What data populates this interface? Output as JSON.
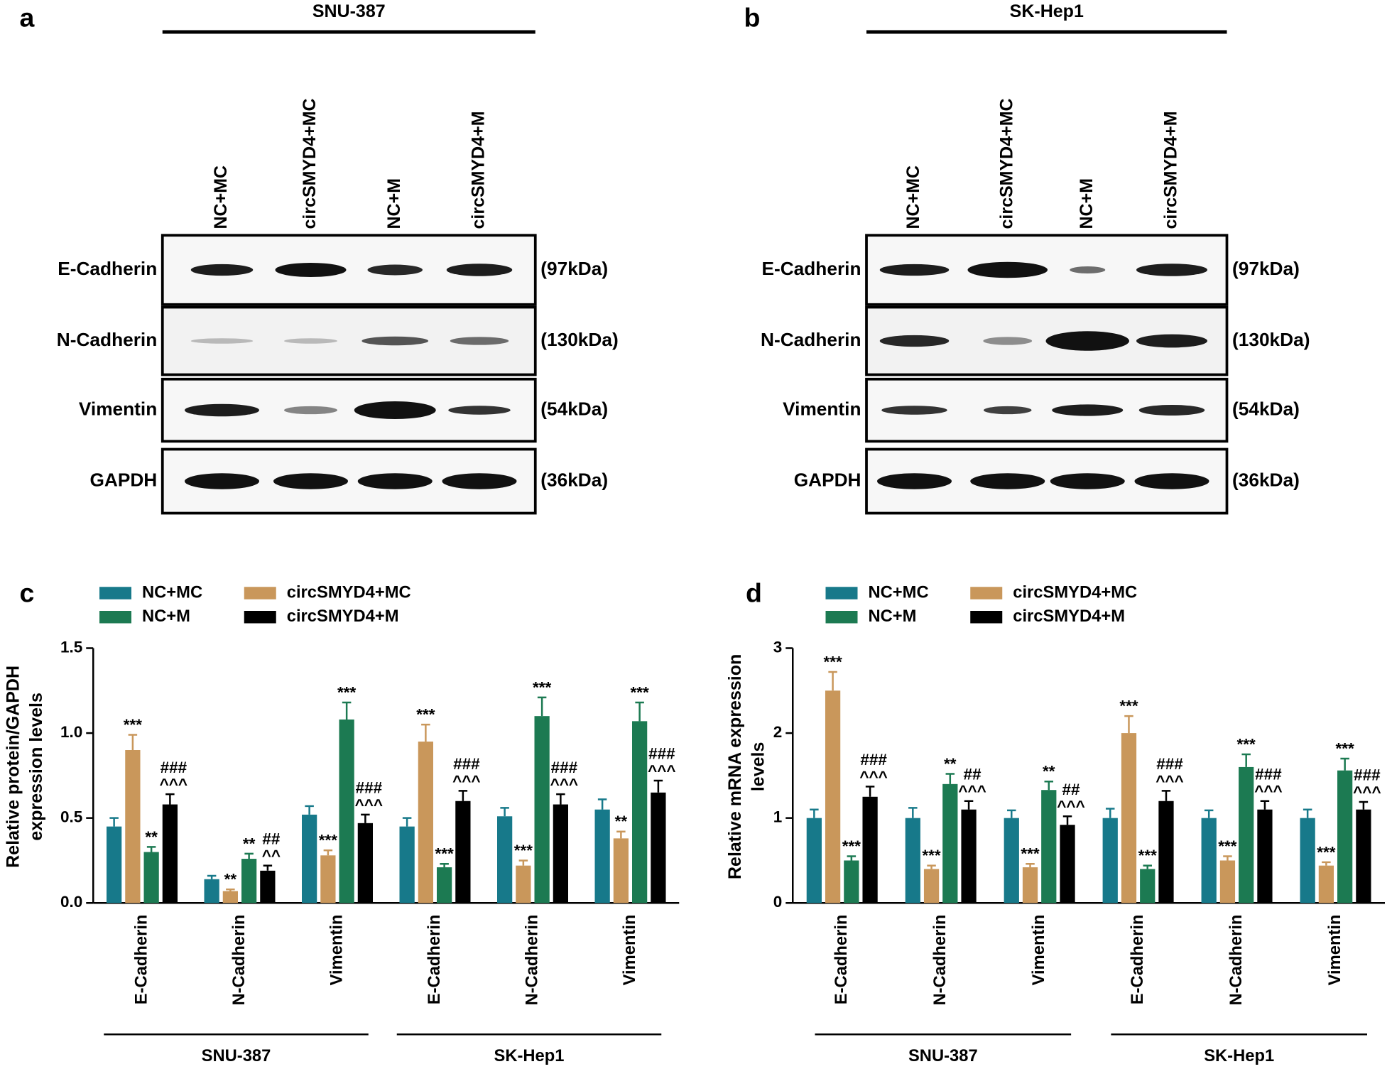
{
  "panels": [
    {
      "letter": "a",
      "cell_line": "SNU-387",
      "lanes": [
        "NC+MC",
        "circSMYD4+MC",
        "NC+M",
        "circSMYD4+M"
      ],
      "rows": [
        {
          "protein": "E-Cadherin",
          "size": "(97kDa)"
        },
        {
          "protein": "N-Cadherin",
          "size": "(130kDa)"
        },
        {
          "protein": "Vimentin",
          "size": "(54kDa)"
        },
        {
          "protein": "GAPDH",
          "size": "(36kDa)"
        }
      ]
    },
    {
      "letter": "b",
      "cell_line": "SK-Hep1",
      "lanes": [
        "NC+MC",
        "circSMYD4+MC",
        "NC+M",
        "circSMYD4+M"
      ],
      "rows": [
        {
          "protein": "E-Cadherin",
          "size": "(97kDa)"
        },
        {
          "protein": "N-Cadherin",
          "size": "(130kDa)"
        },
        {
          "protein": "Vimentin",
          "size": "(54kDa)"
        },
        {
          "protein": "GAPDH",
          "size": "(36kDa)"
        }
      ]
    }
  ],
  "chart_data": [
    {
      "type": "bar",
      "panel_label": "c",
      "y_label": [
        "Relative protein/GAPDH",
        "expression levels"
      ],
      "categories": [
        "E-Cadherin",
        "N-Cadherin",
        "Vimentin",
        "E-Cadherin",
        "N-Cadherin",
        "Vimentin"
      ],
      "groups": [
        "SNU-387",
        "SK-Hep1"
      ],
      "ylim": [
        0,
        1.5
      ],
      "yticks": [
        {
          "value": 0,
          "label": "0.0"
        },
        0.5,
        {
          "value": 1,
          "label": "1.0"
        },
        1.5
      ],
      "series": [
        {
          "name": "NC+MC",
          "color": "#17798a",
          "values": [
            0.45,
            0.14,
            0.52,
            0.45,
            0.51,
            0.55
          ],
          "errors": [
            0.05,
            0.02,
            0.05,
            0.05,
            0.05,
            0.06
          ],
          "annotations": [
            null,
            null,
            null,
            null,
            null,
            null
          ]
        },
        {
          "name": "circSMYD4+MC",
          "color": "#c9975b",
          "values": [
            0.9,
            0.07,
            0.28,
            0.95,
            0.22,
            0.38
          ],
          "errors": [
            0.09,
            0.01,
            0.03,
            0.1,
            0.03,
            0.04
          ],
          "annotations": [
            [
              "***"
            ],
            [
              "**"
            ],
            [
              "***"
            ],
            [
              "***"
            ],
            [
              "***"
            ],
            [
              "**"
            ]
          ]
        },
        {
          "name": "NC+M",
          "color": "#1c7a52",
          "values": [
            0.3,
            0.26,
            1.08,
            0.21,
            1.1,
            1.07
          ],
          "errors": [
            0.03,
            0.03,
            0.1,
            0.02,
            0.11,
            0.11
          ],
          "annotations": [
            [
              "**"
            ],
            [
              "**"
            ],
            [
              "***"
            ],
            [
              "***"
            ],
            [
              "***"
            ],
            [
              "***"
            ]
          ]
        },
        {
          "name": "circSMYD4+M",
          "color": "#000000",
          "values": [
            0.58,
            0.19,
            0.47,
            0.6,
            0.58,
            0.65
          ],
          "errors": [
            0.06,
            0.03,
            0.05,
            0.06,
            0.06,
            0.07
          ],
          "annotations": [
            [
              "###",
              "^^^"
            ],
            [
              "##",
              "^^"
            ],
            [
              "###",
              "^^^"
            ],
            [
              "###",
              "^^^"
            ],
            [
              "###",
              "^^^"
            ],
            [
              "###",
              "^^^"
            ]
          ]
        }
      ]
    },
    {
      "type": "bar",
      "panel_label": "d",
      "y_label": [
        "Relative mRNA expression",
        "levels"
      ],
      "categories": [
        "E-Cadherin",
        "N-Cadherin",
        "Vimentin",
        "E-Cadherin",
        "N-Cadherin",
        "Vimentin"
      ],
      "groups": [
        "SNU-387",
        "SK-Hep1"
      ],
      "ylim": [
        0,
        3
      ],
      "yticks": [
        0,
        1,
        2,
        3
      ],
      "series": [
        {
          "name": "NC+MC",
          "color": "#17798a",
          "values": [
            1,
            1,
            1,
            1,
            1,
            1
          ],
          "errors": [
            0.1,
            0.12,
            0.09,
            0.11,
            0.09,
            0.1
          ],
          "annotations": [
            null,
            null,
            null,
            null,
            null,
            null
          ]
        },
        {
          "name": "circSMYD4+MC",
          "color": "#c9975b",
          "values": [
            2.5,
            0.4,
            0.42,
            2.0,
            0.5,
            0.44
          ],
          "errors": [
            0.22,
            0.04,
            0.04,
            0.2,
            0.05,
            0.04
          ],
          "annotations": [
            [
              "***"
            ],
            [
              "***"
            ],
            [
              "***"
            ],
            [
              "***"
            ],
            [
              "***"
            ],
            [
              "***"
            ]
          ]
        },
        {
          "name": "NC+M",
          "color": "#1c7a52",
          "values": [
            0.5,
            1.4,
            1.33,
            0.4,
            1.6,
            1.56
          ],
          "errors": [
            0.05,
            0.12,
            0.1,
            0.04,
            0.15,
            0.14
          ],
          "annotations": [
            [
              "***"
            ],
            [
              "**"
            ],
            [
              "**"
            ],
            [
              "***"
            ],
            [
              "***"
            ],
            [
              "***"
            ]
          ]
        },
        {
          "name": "circSMYD4+M",
          "color": "#000000",
          "values": [
            1.25,
            1.1,
            0.92,
            1.2,
            1.1,
            1.1
          ],
          "errors": [
            0.12,
            0.1,
            0.1,
            0.12,
            0.1,
            0.09
          ],
          "annotations": [
            [
              "###",
              "^^^"
            ],
            [
              "##",
              "^^^"
            ],
            [
              "##",
              "^^^"
            ],
            [
              "###",
              "^^^"
            ],
            [
              "###",
              "^^^"
            ],
            [
              "###",
              "^^^"
            ]
          ]
        }
      ]
    }
  ]
}
